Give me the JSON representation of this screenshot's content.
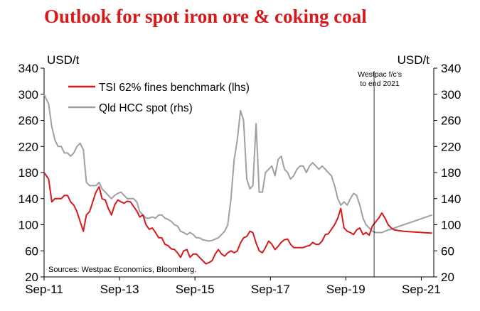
{
  "chart_data": {
    "type": "line",
    "title": "Outlook for spot iron ore & coking coal",
    "y_left_label": "USD/t",
    "y_right_label": "USD/t",
    "y_left": {
      "min": 20,
      "max": 340,
      "ticks": [
        "20",
        "60",
        "100",
        "140",
        "180",
        "220",
        "260",
        "300",
        "340"
      ]
    },
    "y_right": {
      "min": 20,
      "max": 340,
      "ticks": [
        "20",
        "60",
        "100",
        "140",
        "180",
        "220",
        "260",
        "300",
        "340"
      ]
    },
    "x_range": [
      "2011-09-01",
      "2021-12-31"
    ],
    "x_ticks": [
      {
        "date": "2011-09-01",
        "label": "Sep-11"
      },
      {
        "date": "2013-09-01",
        "label": "Sep-13"
      },
      {
        "date": "2015-09-01",
        "label": "Sep-15"
      },
      {
        "date": "2017-09-01",
        "label": "Sep-17"
      },
      {
        "date": "2019-09-01",
        "label": "Sep-19"
      },
      {
        "date": "2021-09-01",
        "label": "Sep-21"
      }
    ],
    "forecast_line": {
      "date": "2020-06-01",
      "label_lines": [
        "Westpac f/c's",
        "to end 2021"
      ]
    },
    "source": "Sources: Westpac Economics, Bloomberg.",
    "legend_position": "top-left",
    "series": [
      {
        "name": "TSI 62% fines benchmark (lhs)",
        "axis": "left",
        "color": "#d7191c",
        "points": [
          [
            "2011-09-01",
            180
          ],
          [
            "2011-10-15",
            170
          ],
          [
            "2011-11-15",
            135
          ],
          [
            "2011-12-15",
            140
          ],
          [
            "2012-01-15",
            140
          ],
          [
            "2012-02-15",
            140
          ],
          [
            "2012-03-15",
            145
          ],
          [
            "2012-04-15",
            145
          ],
          [
            "2012-05-15",
            135
          ],
          [
            "2012-06-15",
            130
          ],
          [
            "2012-07-15",
            120
          ],
          [
            "2012-08-15",
            105
          ],
          [
            "2012-09-15",
            90
          ],
          [
            "2012-10-15",
            115
          ],
          [
            "2012-11-15",
            120
          ],
          [
            "2012-12-15",
            135
          ],
          [
            "2013-01-15",
            150
          ],
          [
            "2013-02-15",
            158
          ],
          [
            "2013-03-15",
            140
          ],
          [
            "2013-04-15",
            138
          ],
          [
            "2013-05-15",
            125
          ],
          [
            "2013-06-15",
            115
          ],
          [
            "2013-07-15",
            130
          ],
          [
            "2013-08-15",
            138
          ],
          [
            "2013-09-15",
            135
          ],
          [
            "2013-10-15",
            133
          ],
          [
            "2013-11-15",
            136
          ],
          [
            "2013-12-15",
            135
          ],
          [
            "2014-01-15",
            128
          ],
          [
            "2014-02-15",
            121
          ],
          [
            "2014-03-15",
            112
          ],
          [
            "2014-04-15",
            115
          ],
          [
            "2014-05-15",
            100
          ],
          [
            "2014-06-15",
            93
          ],
          [
            "2014-07-15",
            95
          ],
          [
            "2014-08-15",
            88
          ],
          [
            "2014-09-15",
            80
          ],
          [
            "2014-10-15",
            80
          ],
          [
            "2014-11-15",
            70
          ],
          [
            "2014-12-15",
            68
          ],
          [
            "2015-01-15",
            63
          ],
          [
            "2015-02-15",
            62
          ],
          [
            "2015-03-15",
            57
          ],
          [
            "2015-04-15",
            50
          ],
          [
            "2015-05-15",
            60
          ],
          [
            "2015-06-15",
            62
          ],
          [
            "2015-07-15",
            50
          ],
          [
            "2015-08-15",
            55
          ],
          [
            "2015-09-15",
            55
          ],
          [
            "2015-10-15",
            50
          ],
          [
            "2015-11-15",
            45
          ],
          [
            "2015-12-15",
            40
          ],
          [
            "2016-01-15",
            42
          ],
          [
            "2016-02-15",
            45
          ],
          [
            "2016-03-15",
            55
          ],
          [
            "2016-04-15",
            62
          ],
          [
            "2016-05-15",
            55
          ],
          [
            "2016-06-15",
            52
          ],
          [
            "2016-07-15",
            57
          ],
          [
            "2016-08-15",
            60
          ],
          [
            "2016-09-15",
            57
          ],
          [
            "2016-10-15",
            60
          ],
          [
            "2016-11-15",
            72
          ],
          [
            "2016-12-15",
            80
          ],
          [
            "2017-01-15",
            82
          ],
          [
            "2017-02-15",
            90
          ],
          [
            "2017-03-15",
            88
          ],
          [
            "2017-04-15",
            72
          ],
          [
            "2017-05-15",
            60
          ],
          [
            "2017-06-15",
            57
          ],
          [
            "2017-07-15",
            65
          ],
          [
            "2017-08-15",
            75
          ],
          [
            "2017-09-15",
            70
          ],
          [
            "2017-10-15",
            62
          ],
          [
            "2017-11-15",
            67
          ],
          [
            "2017-12-15",
            73
          ],
          [
            "2018-01-15",
            77
          ],
          [
            "2018-02-15",
            78
          ],
          [
            "2018-03-15",
            70
          ],
          [
            "2018-04-15",
            65
          ],
          [
            "2018-05-15",
            65
          ],
          [
            "2018-06-15",
            65
          ],
          [
            "2018-07-15",
            65
          ],
          [
            "2018-08-15",
            67
          ],
          [
            "2018-09-15",
            68
          ],
          [
            "2018-10-15",
            73
          ],
          [
            "2018-11-15",
            70
          ],
          [
            "2018-12-15",
            70
          ],
          [
            "2019-01-15",
            75
          ],
          [
            "2019-02-15",
            85
          ],
          [
            "2019-03-15",
            86
          ],
          [
            "2019-04-15",
            93
          ],
          [
            "2019-05-15",
            100
          ],
          [
            "2019-06-15",
            110
          ],
          [
            "2019-07-15",
            125
          ],
          [
            "2019-08-15",
            95
          ],
          [
            "2019-09-15",
            90
          ],
          [
            "2019-10-15",
            88
          ],
          [
            "2019-11-15",
            85
          ],
          [
            "2019-12-15",
            92
          ],
          [
            "2020-01-15",
            95
          ],
          [
            "2020-02-15",
            85
          ],
          [
            "2020-03-15",
            88
          ],
          [
            "2020-04-15",
            84
          ],
          [
            "2020-05-15",
            98
          ],
          [
            "2020-06-15",
            104
          ],
          [
            "2020-07-15",
            110
          ],
          [
            "2020-08-15",
            118
          ],
          [
            "2020-09-15",
            110
          ],
          [
            "2020-10-15",
            100
          ],
          [
            "2020-11-15",
            95
          ],
          [
            "2020-12-15",
            92
          ],
          [
            "2021-03-15",
            90
          ],
          [
            "2021-06-15",
            89
          ],
          [
            "2021-09-15",
            88
          ],
          [
            "2021-12-15",
            87
          ]
        ]
      },
      {
        "name": "Qld HCC spot (rhs)",
        "axis": "right",
        "color": "#a0a0a0",
        "points": [
          [
            "2011-09-01",
            300
          ],
          [
            "2011-10-15",
            285
          ],
          [
            "2011-11-15",
            250
          ],
          [
            "2011-12-15",
            230
          ],
          [
            "2012-01-15",
            220
          ],
          [
            "2012-02-15",
            220
          ],
          [
            "2012-03-15",
            210
          ],
          [
            "2012-04-15",
            210
          ],
          [
            "2012-05-15",
            205
          ],
          [
            "2012-06-15",
            210
          ],
          [
            "2012-07-15",
            220
          ],
          [
            "2012-08-15",
            225
          ],
          [
            "2012-09-15",
            215
          ],
          [
            "2012-10-15",
            165
          ],
          [
            "2012-11-15",
            160
          ],
          [
            "2012-12-15",
            160
          ],
          [
            "2013-01-15",
            160
          ],
          [
            "2013-02-15",
            165
          ],
          [
            "2013-03-15",
            155
          ],
          [
            "2013-04-15",
            150
          ],
          [
            "2013-05-15",
            145
          ],
          [
            "2013-06-15",
            140
          ],
          [
            "2013-07-15",
            145
          ],
          [
            "2013-08-15",
            148
          ],
          [
            "2013-09-15",
            150
          ],
          [
            "2013-10-15",
            145
          ],
          [
            "2013-11-15",
            140
          ],
          [
            "2013-12-15",
            140
          ],
          [
            "2014-01-15",
            140
          ],
          [
            "2014-02-15",
            135
          ],
          [
            "2014-03-15",
            120
          ],
          [
            "2014-04-15",
            115
          ],
          [
            "2014-05-15",
            110
          ],
          [
            "2014-06-15",
            110
          ],
          [
            "2014-07-15",
            112
          ],
          [
            "2014-08-15",
            110
          ],
          [
            "2014-09-15",
            115
          ],
          [
            "2014-10-15",
            115
          ],
          [
            "2014-11-15",
            110
          ],
          [
            "2014-12-15",
            108
          ],
          [
            "2015-01-15",
            105
          ],
          [
            "2015-02-15",
            100
          ],
          [
            "2015-03-15",
            98
          ],
          [
            "2015-04-15",
            90
          ],
          [
            "2015-05-15",
            88
          ],
          [
            "2015-06-15",
            85
          ],
          [
            "2015-07-15",
            88
          ],
          [
            "2015-08-15",
            85
          ],
          [
            "2015-09-15",
            80
          ],
          [
            "2015-10-15",
            80
          ],
          [
            "2015-11-15",
            77
          ],
          [
            "2015-12-15",
            76
          ],
          [
            "2016-01-15",
            75
          ],
          [
            "2016-02-15",
            76
          ],
          [
            "2016-03-15",
            78
          ],
          [
            "2016-04-15",
            80
          ],
          [
            "2016-05-15",
            85
          ],
          [
            "2016-06-15",
            90
          ],
          [
            "2016-07-15",
            100
          ],
          [
            "2016-08-15",
            140
          ],
          [
            "2016-09-15",
            200
          ],
          [
            "2016-10-15",
            230
          ],
          [
            "2016-11-15",
            275
          ],
          [
            "2016-12-15",
            260
          ],
          [
            "2017-01-15",
            170
          ],
          [
            "2017-02-15",
            155
          ],
          [
            "2017-03-15",
            160
          ],
          [
            "2017-04-15",
            255
          ],
          [
            "2017-05-15",
            150
          ],
          [
            "2017-06-15",
            150
          ],
          [
            "2017-07-15",
            180
          ],
          [
            "2017-08-15",
            185
          ],
          [
            "2017-09-15",
            190
          ],
          [
            "2017-10-15",
            175
          ],
          [
            "2017-11-15",
            200
          ],
          [
            "2017-12-15",
            205
          ],
          [
            "2018-01-15",
            185
          ],
          [
            "2018-02-15",
            180
          ],
          [
            "2018-03-15",
            170
          ],
          [
            "2018-04-15",
            175
          ],
          [
            "2018-05-15",
            185
          ],
          [
            "2018-06-15",
            190
          ],
          [
            "2018-07-15",
            190
          ],
          [
            "2018-08-15",
            180
          ],
          [
            "2018-09-15",
            190
          ],
          [
            "2018-10-15",
            195
          ],
          [
            "2018-11-15",
            190
          ],
          [
            "2018-12-15",
            185
          ],
          [
            "2019-01-15",
            190
          ],
          [
            "2019-02-15",
            185
          ],
          [
            "2019-03-15",
            180
          ],
          [
            "2019-04-15",
            175
          ],
          [
            "2019-05-15",
            160
          ],
          [
            "2019-06-15",
            140
          ],
          [
            "2019-07-15",
            130
          ],
          [
            "2019-08-15",
            135
          ],
          [
            "2019-09-15",
            130
          ],
          [
            "2019-10-15",
            140
          ],
          [
            "2019-11-15",
            148
          ],
          [
            "2019-12-15",
            145
          ],
          [
            "2020-01-15",
            130
          ],
          [
            "2020-02-15",
            110
          ],
          [
            "2020-03-15",
            100
          ],
          [
            "2020-04-15",
            95
          ],
          [
            "2020-05-15",
            90
          ],
          [
            "2020-06-15",
            88
          ],
          [
            "2020-07-15",
            88
          ],
          [
            "2020-08-15",
            88
          ],
          [
            "2020-09-15",
            90
          ],
          [
            "2020-10-15",
            92
          ],
          [
            "2020-11-15",
            93
          ],
          [
            "2020-12-15",
            95
          ],
          [
            "2021-03-15",
            100
          ],
          [
            "2021-06-15",
            105
          ],
          [
            "2021-09-15",
            110
          ],
          [
            "2021-12-15",
            115
          ]
        ]
      }
    ]
  }
}
